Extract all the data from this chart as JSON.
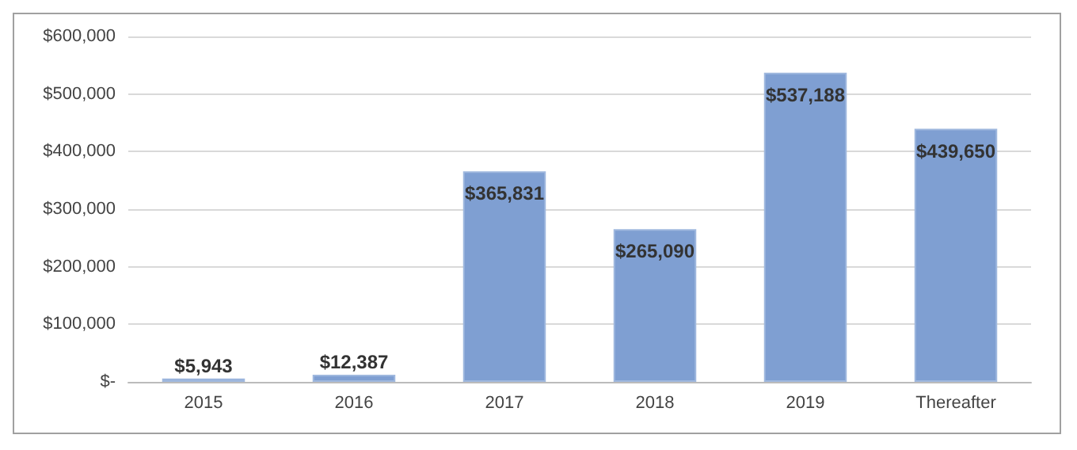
{
  "chart_data": {
    "type": "bar",
    "categories": [
      "2015",
      "2016",
      "2017",
      "2018",
      "2019",
      "Thereafter"
    ],
    "values": [
      5943,
      12387,
      365831,
      265090,
      537188,
      439650
    ],
    "color": "#7f9fd2",
    "value_labels": [
      "$5,943",
      "$12,387",
      "$365,831",
      "$265,090",
      "$537,188",
      "$439,650"
    ],
    "ylim": [
      0,
      600000
    ],
    "yticks": [
      {
        "value": 0,
        "label": "$-"
      },
      {
        "value": 100000,
        "label": "$100,000"
      },
      {
        "value": 200000,
        "label": "$200,000"
      },
      {
        "value": 300000,
        "label": "$300,000"
      },
      {
        "value": 400000,
        "label": "$400,000"
      },
      {
        "value": 500000,
        "label": "$500,000"
      },
      {
        "value": 600000,
        "label": "$600,000"
      }
    ],
    "grid": "y"
  }
}
